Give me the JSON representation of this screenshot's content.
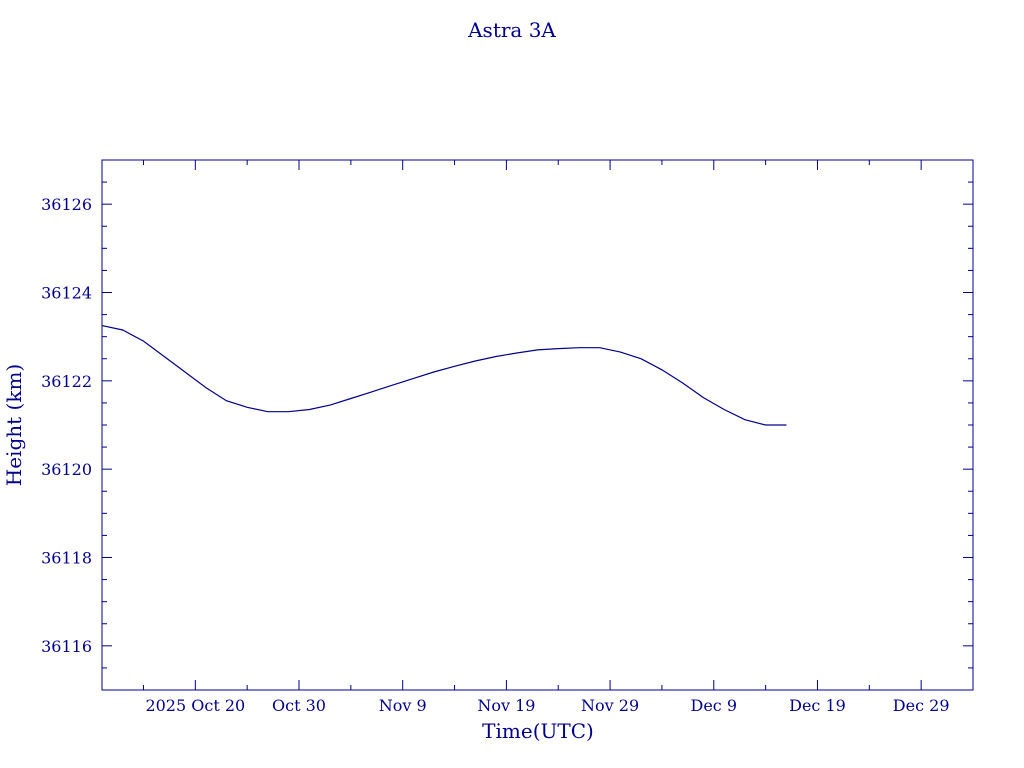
{
  "colors": {
    "ink": "#00008b",
    "background": "#ffffff"
  },
  "chart_data": {
    "type": "line",
    "title": "Astra 3A",
    "xlabel": "Time(UTC)",
    "ylabel": "Height (km)",
    "xlim": [
      "2025-10-11",
      "2026-01-03"
    ],
    "ylim": [
      36115,
      36127
    ],
    "x_ticks": [
      {
        "date": "2025-10-20",
        "label": "2025 Oct 20"
      },
      {
        "date": "2025-10-30",
        "label": "Oct 30"
      },
      {
        "date": "2025-11-09",
        "label": "Nov  9"
      },
      {
        "date": "2025-11-19",
        "label": "Nov 19"
      },
      {
        "date": "2025-11-29",
        "label": "Nov 29"
      },
      {
        "date": "2025-12-09",
        "label": "Dec  9"
      },
      {
        "date": "2025-12-19",
        "label": "Dec 19"
      },
      {
        "date": "2025-12-29",
        "label": "Dec 29"
      }
    ],
    "y_ticks": [
      36116,
      36118,
      36120,
      36122,
      36124,
      36126
    ],
    "grid": false,
    "series": [
      {
        "x": [
          "2025-10-11",
          "2025-10-13",
          "2025-10-15",
          "2025-10-17",
          "2025-10-19",
          "2025-10-21",
          "2025-10-23",
          "2025-10-25",
          "2025-10-27",
          "2025-10-29",
          "2025-10-31",
          "2025-11-02",
          "2025-11-04",
          "2025-11-06",
          "2025-11-08",
          "2025-11-10",
          "2025-11-12",
          "2025-11-14",
          "2025-11-16",
          "2025-11-18",
          "2025-11-20",
          "2025-11-22",
          "2025-11-24",
          "2025-11-26",
          "2025-11-28",
          "2025-11-30",
          "2025-12-02",
          "2025-12-04",
          "2025-12-06",
          "2025-12-08",
          "2025-12-10",
          "2025-12-12",
          "2025-12-14",
          "2025-12-16"
        ],
        "y": [
          36123.25,
          36123.15,
          36122.9,
          36122.55,
          36122.2,
          36121.85,
          36121.55,
          36121.4,
          36121.3,
          36121.3,
          36121.35,
          36121.45,
          36121.6,
          36121.75,
          36121.9,
          36122.05,
          36122.2,
          36122.33,
          36122.45,
          36122.55,
          36122.63,
          36122.7,
          36122.73,
          36122.75,
          36122.75,
          36122.65,
          36122.5,
          36122.25,
          36121.95,
          36121.62,
          36121.35,
          36121.12,
          36121.0,
          36121.0
        ]
      }
    ]
  }
}
